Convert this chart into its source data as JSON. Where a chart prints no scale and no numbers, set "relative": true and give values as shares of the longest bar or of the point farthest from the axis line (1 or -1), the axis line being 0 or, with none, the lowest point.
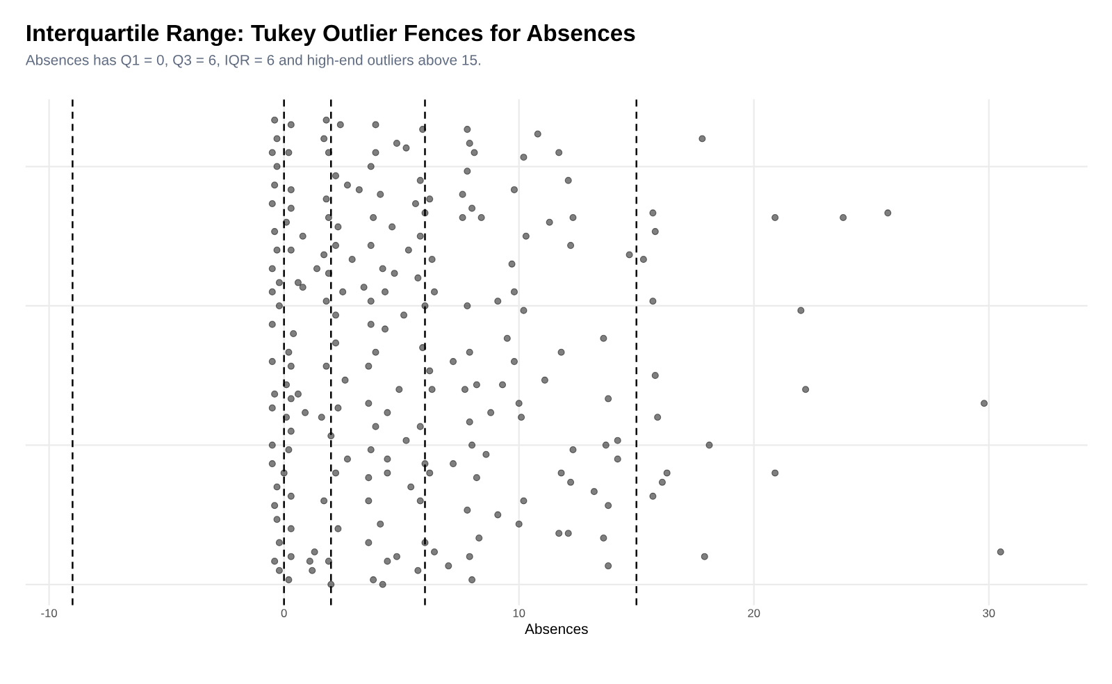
{
  "chart_data": {
    "type": "scatter",
    "title": "Interquartile Range: Tukey Outlier Fences for Absences",
    "subtitle": "Absences has Q1 = 0, Q3 = 6, IQR = 6 and high-end outliers above 15.",
    "xlabel": "Absences",
    "relative": true,
    "grid": true,
    "legend": false,
    "marker": "circle",
    "tick_labels": "x",
    "xlim": [
      -11,
      34.2
    ],
    "xticks": [
      -10,
      0,
      10,
      20,
      30
    ],
    "ref_lines": [
      {
        "axis": "x",
        "value": -9,
        "color": "#000000",
        "line_style": "dashed"
      },
      {
        "axis": "x",
        "value": 0,
        "color": "#000000",
        "line_style": "dashed"
      },
      {
        "axis": "x",
        "value": 2,
        "color": "#000000",
        "line_style": "dashed"
      },
      {
        "axis": "x",
        "value": 6,
        "color": "#000000",
        "line_style": "dashed"
      },
      {
        "axis": "x",
        "value": 15,
        "color": "#000000",
        "line_style": "dashed"
      }
    ],
    "series": [
      {
        "color": "#000000",
        "x": [
          17.8,
          20.9,
          23.8,
          25.7,
          22.0,
          22.2,
          29.8,
          18.1,
          20.9,
          17.9,
          30.5,
          15.7,
          15.8,
          14.7,
          15.3,
          15.7,
          13.6,
          15.8,
          13.8,
          15.9,
          14.2,
          13.7,
          14.2,
          16.3,
          16.1,
          15.7,
          13.2,
          13.8,
          13.6,
          13.8,
          10.8,
          11.7,
          10.2,
          12.1,
          9.8,
          12.3,
          11.3,
          10.3,
          12.2,
          9.7,
          9.8,
          9.1,
          10.2,
          9.5,
          11.8,
          9.8,
          11.1,
          9.3,
          10.0,
          8.8,
          10.1,
          12.3,
          11.8,
          12.2,
          10.2,
          10.0,
          9.1,
          11.7,
          12.1,
          7.8,
          7.9,
          8.1,
          7.8,
          7.6,
          8.0,
          8.4,
          7.6,
          7.8,
          7.9,
          7.7,
          8.2,
          7.9,
          8.0,
          8.6,
          8.2,
          7.8,
          8.3,
          7.9,
          8.0,
          5.9,
          5.8,
          6.2,
          5.6,
          6.0,
          5.8,
          6.3,
          5.7,
          6.4,
          6.0,
          5.9,
          6.2,
          6.3,
          5.8,
          6.0,
          6.2,
          5.4,
          5.8,
          6.0,
          6.4,
          5.7,
          7.2,
          7.2,
          7.0,
          3.9,
          4.8,
          5.2,
          3.9,
          3.7,
          3.2,
          4.1,
          3.8,
          4.6,
          3.7,
          5.3,
          4.2,
          4.7,
          3.4,
          4.3,
          3.7,
          5.1,
          3.7,
          4.3,
          3.9,
          3.6,
          4.9,
          3.6,
          4.4,
          3.9,
          5.2,
          3.7,
          4.4,
          3.6,
          4.4,
          3.6,
          4.1,
          3.6,
          4.4,
          4.8,
          3.8,
          4.2,
          1.8,
          2.4,
          1.7,
          1.9,
          2.2,
          2.7,
          1.8,
          1.9,
          2.3,
          2.2,
          1.7,
          2.9,
          1.4,
          1.9,
          2.5,
          1.8,
          2.2,
          2.2,
          1.8,
          2.6,
          2.3,
          1.6,
          2.0,
          2.7,
          2.2,
          1.7,
          2.3,
          1.3,
          1.1,
          1.9,
          1.2,
          2.0,
          0.9,
          0.6,
          0.8,
          -0.4,
          0.3,
          -0.3,
          -0.5,
          0.2,
          -0.3,
          -0.4,
          0.3,
          -0.5,
          0.3,
          0.1,
          0.8,
          -0.4,
          -0.3,
          0.3,
          -0.5,
          -0.2,
          0.6,
          -0.5,
          -0.2,
          -0.5,
          0.4,
          0.2,
          -0.5,
          0.3,
          0.1,
          -0.4,
          0.3,
          -0.5,
          0.1,
          0.3,
          -0.5,
          0.2,
          -0.5,
          0.0,
          -0.3,
          0.3,
          -0.4,
          -0.3,
          0.3,
          -0.2,
          -0.4,
          0.3,
          -0.2,
          0.2
        ],
        "values": [
          0.96,
          0.79,
          0.79,
          0.8,
          0.59,
          0.42,
          0.39,
          0.3,
          0.24,
          0.06,
          0.07,
          0.8,
          0.76,
          0.71,
          0.7,
          0.61,
          0.53,
          0.45,
          0.4,
          0.36,
          0.31,
          0.3,
          0.27,
          0.24,
          0.22,
          0.19,
          0.2,
          0.17,
          0.1,
          0.04,
          0.97,
          0.93,
          0.92,
          0.87,
          0.85,
          0.79,
          0.78,
          0.75,
          0.73,
          0.69,
          0.63,
          0.61,
          0.59,
          0.53,
          0.5,
          0.48,
          0.44,
          0.43,
          0.39,
          0.37,
          0.36,
          0.29,
          0.24,
          0.22,
          0.18,
          0.13,
          0.15,
          0.11,
          0.11,
          0.98,
          0.95,
          0.93,
          0.89,
          0.84,
          0.81,
          0.79,
          0.79,
          0.6,
          0.5,
          0.42,
          0.43,
          0.35,
          0.3,
          0.28,
          0.23,
          0.16,
          0.1,
          0.06,
          0.01,
          0.98,
          0.87,
          0.83,
          0.82,
          0.8,
          0.75,
          0.7,
          0.66,
          0.63,
          0.6,
          0.51,
          0.46,
          0.42,
          0.34,
          0.26,
          0.24,
          0.21,
          0.18,
          0.09,
          0.07,
          0.03,
          0.48,
          0.26,
          0.04,
          0.99,
          0.95,
          0.94,
          0.93,
          0.9,
          0.85,
          0.84,
          0.79,
          0.77,
          0.73,
          0.72,
          0.68,
          0.67,
          0.64,
          0.63,
          0.61,
          0.58,
          0.56,
          0.55,
          0.5,
          0.47,
          0.42,
          0.39,
          0.37,
          0.34,
          0.31,
          0.29,
          0.27,
          0.23,
          0.24,
          0.18,
          0.13,
          0.09,
          0.05,
          0.06,
          0.01,
          0.0,
          1.0,
          0.99,
          0.96,
          0.93,
          0.88,
          0.86,
          0.83,
          0.79,
          0.77,
          0.73,
          0.71,
          0.7,
          0.68,
          0.67,
          0.63,
          0.61,
          0.58,
          0.52,
          0.47,
          0.44,
          0.38,
          0.36,
          0.32,
          0.27,
          0.24,
          0.18,
          0.12,
          0.07,
          0.05,
          0.05,
          0.03,
          0.0,
          0.37,
          0.41,
          0.64,
          1.0,
          0.99,
          0.96,
          0.93,
          0.93,
          0.9,
          0.86,
          0.85,
          0.82,
          0.81,
          0.78,
          0.75,
          0.76,
          0.72,
          0.72,
          0.68,
          0.65,
          0.65,
          0.63,
          0.6,
          0.56,
          0.54,
          0.5,
          0.48,
          0.47,
          0.43,
          0.41,
          0.4,
          0.38,
          0.36,
          0.33,
          0.3,
          0.29,
          0.26,
          0.24,
          0.21,
          0.19,
          0.17,
          0.14,
          0.12,
          0.09,
          0.05,
          0.06,
          0.03,
          0.01
        ]
      }
    ]
  }
}
